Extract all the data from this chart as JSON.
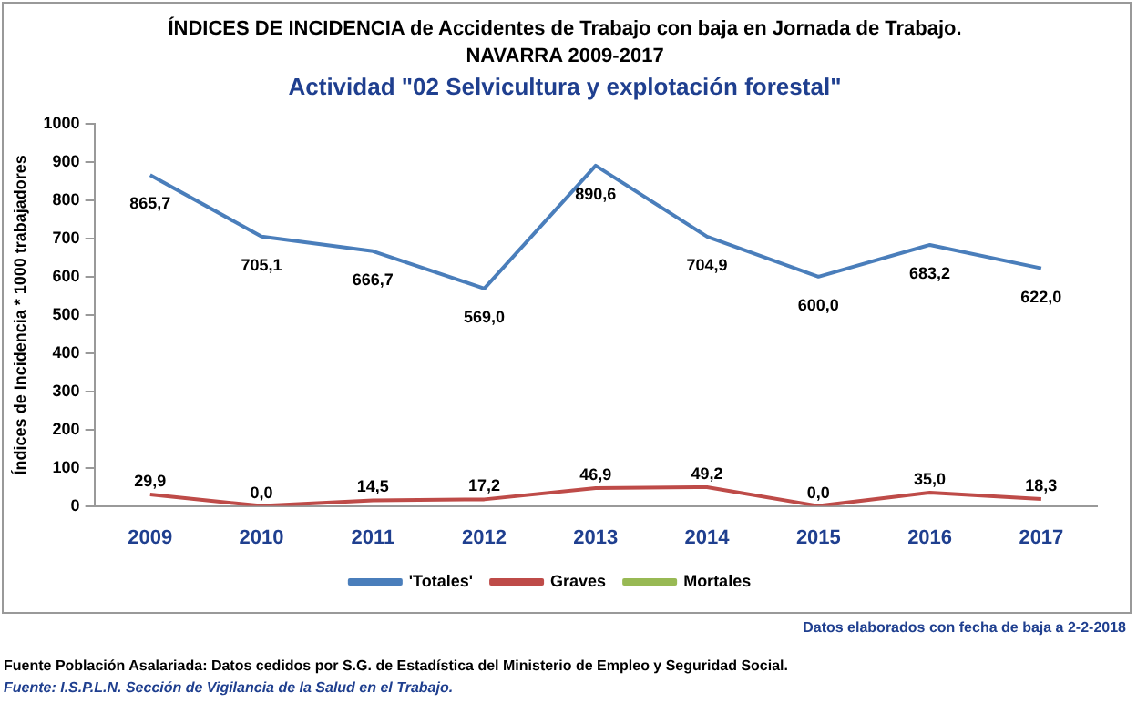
{
  "chart_data": {
    "type": "line",
    "title": "ÍNDICES DE INCIDENCIA de Accidentes de Trabajo con baja en Jornada de Trabajo.",
    "subtitle": "NAVARRA 2009-2017",
    "ylabel": "Índices de Incidencia * 1000 trabajadores",
    "categories": [
      "2009",
      "2010",
      "2011",
      "2012",
      "2013",
      "2014",
      "2015",
      "2016",
      "2017"
    ],
    "series": [
      {
        "name": "'Totales'",
        "color": "#4a7ebb",
        "values": [
          865.7,
          705.1,
          666.7,
          569.0,
          890.6,
          704.9,
          600.0,
          683.2,
          622.0
        ],
        "value_labels": [
          "865,7",
          "705,1",
          "666,7",
          "569,0",
          "890,6",
          "704,9",
          "600,0",
          "683,2",
          "622,0"
        ]
      },
      {
        "name": "Graves",
        "color": "#be4b48",
        "values": [
          29.9,
          0.0,
          14.5,
          17.2,
          46.9,
          49.2,
          0.0,
          35.0,
          18.3
        ],
        "value_labels": [
          "29,9",
          "0,0",
          "14,5",
          "17,2",
          "46,9",
          "49,2",
          "0,0",
          "35,0",
          "18,3"
        ]
      },
      {
        "name": "Mortales",
        "color": "#98b954",
        "values": [
          null,
          null,
          null,
          null,
          null,
          null,
          null,
          null,
          null
        ]
      }
    ],
    "ylim": [
      0,
      1000
    ],
    "yticks": [
      0,
      100,
      200,
      300,
      400,
      500,
      600,
      700,
      800,
      900,
      1000
    ],
    "grid": false,
    "legend": "bottom",
    "marker": "none",
    "line_style": "solid",
    "annotations": [
      "Actividad \"02 Selvicultura y explotación forestal\"",
      "Datos elaborados con fecha de baja a 2-2-2018",
      "Fuente Población Asalariada: Datos cedidos por S.G. de Estadística del Ministerio de Empleo y Seguridad Social.",
      "Fuente: I.S.P.L.N. Sección de Vigilancia de la Salud en el Trabajo."
    ]
  }
}
